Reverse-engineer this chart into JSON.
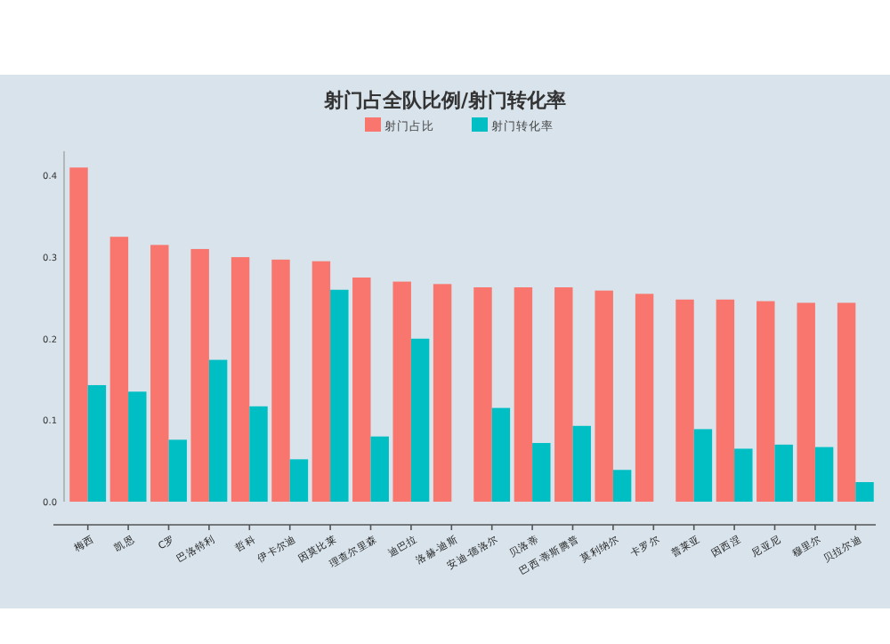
{
  "chart_data": {
    "type": "bar",
    "title": "射门占全队比例/射门转化率",
    "categories": [
      "梅西",
      "凯恩",
      "C罗",
      "巴洛特利",
      "哲科",
      "伊卡尔迪",
      "因莫比莱",
      "理查尔里森",
      "迪巴拉",
      "洛赫-迪斯",
      "安迪-德洛尔",
      "贝洛蒂",
      "巴西·蒂斯腾普",
      "莫利纳尔",
      "卡罗尔",
      "普莱亚",
      "因西涅",
      "尼亚尼",
      "穆里尔",
      "贝拉尔迪"
    ],
    "series": [
      {
        "name": "射门占比",
        "color": "#f8766d",
        "values": [
          0.41,
          0.325,
          0.315,
          0.31,
          0.3,
          0.297,
          0.295,
          0.275,
          0.27,
          0.267,
          0.263,
          0.263,
          0.263,
          0.259,
          0.255,
          0.248,
          0.248,
          0.246,
          0.244,
          0.244
        ]
      },
      {
        "name": "射门转化率",
        "color": "#00bfc4",
        "values": [
          0.143,
          0.135,
          0.076,
          0.174,
          0.117,
          0.052,
          0.26,
          0.08,
          0.2,
          null,
          0.115,
          0.072,
          0.093,
          0.039,
          null,
          0.089,
          0.065,
          0.07,
          0.067,
          0.024
        ]
      }
    ],
    "ylim": [
      0,
      0.43
    ],
    "yticks": [
      {
        "value": 0,
        "label": "0.0"
      },
      {
        "value": 0.1,
        "label": "0.1"
      },
      {
        "value": 0.2,
        "label": "0.2"
      },
      {
        "value": 0.3,
        "label": "0.3"
      },
      {
        "value": 0.4,
        "label": "0.4"
      }
    ],
    "legend": "top",
    "grid": false
  }
}
